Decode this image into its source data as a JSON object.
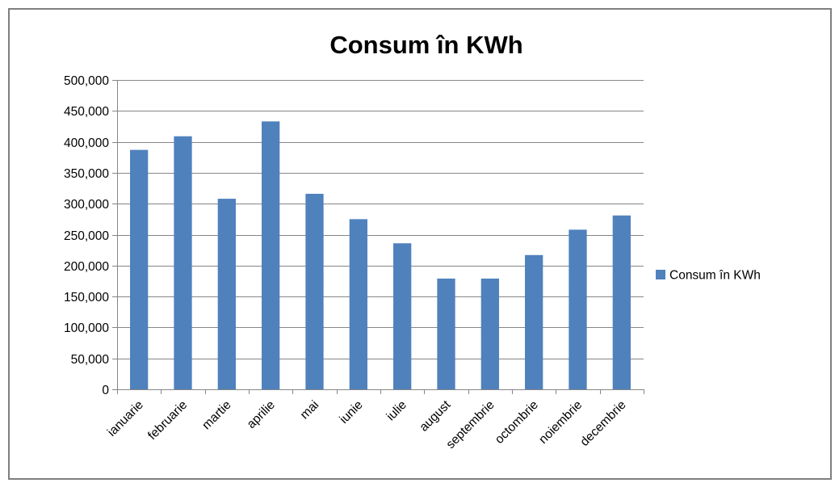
{
  "chart_data": {
    "type": "bar",
    "title": "Consum în KWh",
    "xlabel": "",
    "ylabel": "",
    "categories": [
      "ianuarie",
      "februarie",
      "martie",
      "aprilie",
      "mai",
      "iunie",
      "iulie",
      "august",
      "septembrie",
      "octombrie",
      "noiembrie",
      "decembrie"
    ],
    "series": [
      {
        "name": "Consum în KWh",
        "color": "#4f81bd",
        "values": [
          387000,
          409000,
          308000,
          433000,
          316000,
          275000,
          236000,
          179000,
          179000,
          217000,
          258000,
          281000
        ]
      }
    ],
    "ylim": [
      0,
      500000
    ],
    "yticks": [
      0,
      50000,
      100000,
      150000,
      200000,
      250000,
      300000,
      350000,
      400000,
      450000,
      500000
    ],
    "ytick_labels": [
      "0",
      "50,000",
      "100,000",
      "150,000",
      "200,000",
      "250,000",
      "300,000",
      "350,000",
      "400,000",
      "450,000",
      "500,000"
    ],
    "grid": true,
    "legend": "right"
  }
}
